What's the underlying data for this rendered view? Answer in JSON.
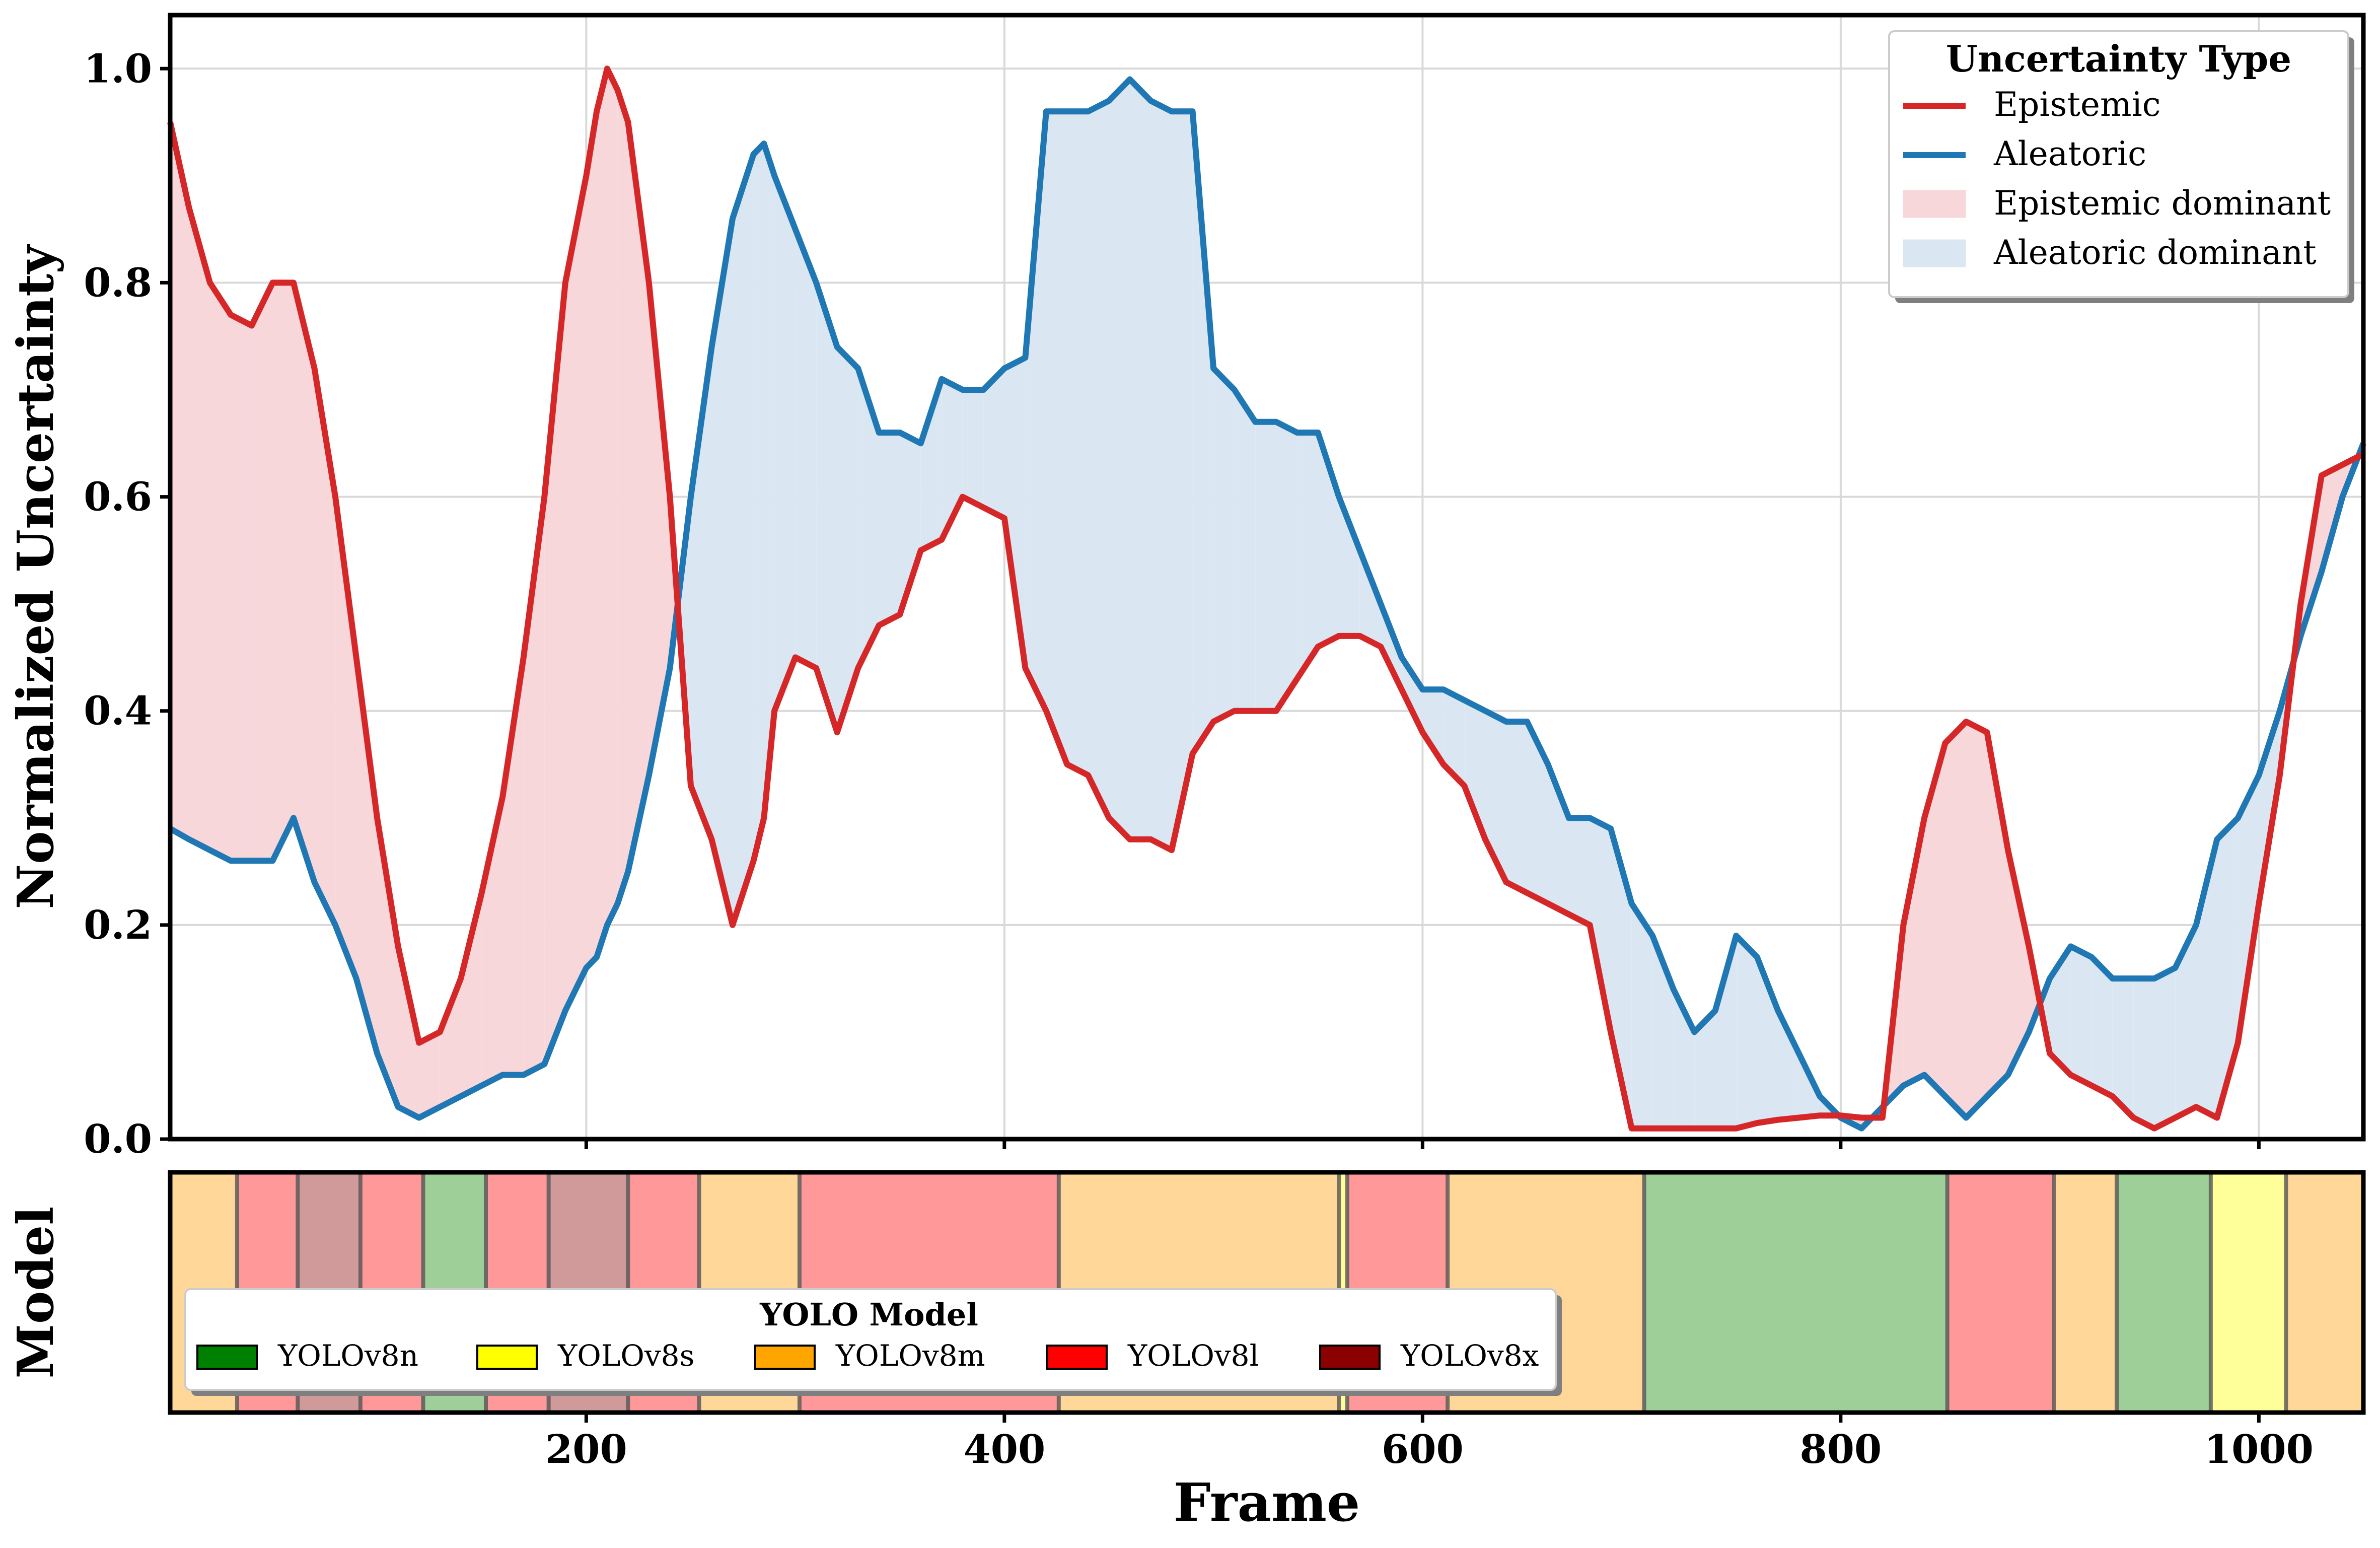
{
  "chart_data": [
    {
      "type": "line",
      "title": "",
      "xlabel": "",
      "ylabel": "Normalized Uncertainty",
      "xlim": [
        1,
        1050
      ],
      "ylim": [
        0,
        1.05
      ],
      "x_ticks": [
        200,
        400,
        600,
        800,
        1000
      ],
      "y_ticks": [
        0.0,
        0.2,
        0.4,
        0.6,
        0.8,
        1.0
      ],
      "y_tick_labels": [
        "0.0",
        "0.2",
        "0.4",
        "0.6",
        "0.8",
        "1.0"
      ],
      "grid": true,
      "legend_position": "top-right",
      "legend_title": "Uncertainty Type",
      "series": [
        {
          "name": "Epistemic",
          "color": "#d62728",
          "x": [
            1,
            10,
            20,
            30,
            40,
            50,
            60,
            70,
            80,
            90,
            100,
            110,
            120,
            130,
            140,
            150,
            160,
            170,
            180,
            190,
            200,
            205,
            210,
            215,
            220,
            230,
            240,
            250,
            260,
            270,
            280,
            285,
            290,
            300,
            310,
            320,
            330,
            340,
            350,
            360,
            370,
            380,
            390,
            400,
            410,
            420,
            430,
            440,
            450,
            460,
            470,
            480,
            490,
            500,
            510,
            520,
            530,
            540,
            550,
            560,
            570,
            580,
            590,
            600,
            610,
            620,
            630,
            640,
            650,
            660,
            670,
            680,
            690,
            700,
            710,
            720,
            730,
            740,
            750,
            760,
            770,
            780,
            790,
            800,
            810,
            820,
            830,
            840,
            850,
            860,
            870,
            880,
            890,
            900,
            910,
            920,
            930,
            940,
            950,
            960,
            970,
            980,
            990,
            1000,
            1010,
            1020,
            1030,
            1040,
            1050
          ],
          "values": [
            0.95,
            0.87,
            0.8,
            0.77,
            0.76,
            0.8,
            0.8,
            0.72,
            0.6,
            0.45,
            0.3,
            0.18,
            0.09,
            0.1,
            0.15,
            0.23,
            0.32,
            0.45,
            0.6,
            0.8,
            0.9,
            0.96,
            1.0,
            0.98,
            0.95,
            0.8,
            0.6,
            0.33,
            0.28,
            0.2,
            0.26,
            0.3,
            0.4,
            0.45,
            0.44,
            0.38,
            0.44,
            0.48,
            0.49,
            0.55,
            0.56,
            0.6,
            0.59,
            0.58,
            0.44,
            0.4,
            0.35,
            0.34,
            0.3,
            0.28,
            0.28,
            0.27,
            0.36,
            0.39,
            0.4,
            0.4,
            0.4,
            0.43,
            0.46,
            0.47,
            0.47,
            0.46,
            0.42,
            0.38,
            0.35,
            0.33,
            0.28,
            0.24,
            0.23,
            0.22,
            0.21,
            0.2,
            0.1,
            0.01,
            0.01,
            0.01,
            0.01,
            0.01,
            0.01,
            0.015,
            0.018,
            0.02,
            0.022,
            0.022,
            0.02,
            0.02,
            0.2,
            0.3,
            0.37,
            0.39,
            0.38,
            0.27,
            0.18,
            0.08,
            0.06,
            0.05,
            0.04,
            0.02,
            0.01,
            0.02,
            0.03,
            0.02,
            0.09,
            0.22,
            0.34,
            0.5,
            0.62,
            0.63,
            0.64
          ],
          "line_width": 12
        },
        {
          "name": "Aleatoric",
          "color": "#1f77b4",
          "x": [
            1,
            10,
            20,
            30,
            40,
            50,
            60,
            70,
            80,
            90,
            100,
            110,
            120,
            130,
            140,
            150,
            160,
            170,
            180,
            190,
            200,
            205,
            210,
            215,
            220,
            230,
            240,
            250,
            260,
            270,
            280,
            285,
            290,
            300,
            310,
            320,
            330,
            340,
            350,
            360,
            370,
            380,
            390,
            400,
            410,
            420,
            430,
            440,
            450,
            460,
            470,
            480,
            490,
            500,
            510,
            520,
            530,
            540,
            550,
            560,
            570,
            580,
            590,
            600,
            610,
            620,
            630,
            640,
            650,
            660,
            670,
            680,
            690,
            700,
            710,
            720,
            730,
            740,
            750,
            760,
            770,
            780,
            790,
            800,
            810,
            820,
            830,
            840,
            850,
            860,
            870,
            880,
            890,
            900,
            910,
            920,
            930,
            940,
            950,
            960,
            970,
            980,
            990,
            1000,
            1010,
            1020,
            1030,
            1040,
            1050
          ],
          "values": [
            0.29,
            0.28,
            0.27,
            0.26,
            0.26,
            0.26,
            0.3,
            0.24,
            0.2,
            0.15,
            0.08,
            0.03,
            0.02,
            0.03,
            0.04,
            0.05,
            0.06,
            0.06,
            0.07,
            0.12,
            0.16,
            0.17,
            0.2,
            0.22,
            0.25,
            0.34,
            0.44,
            0.6,
            0.74,
            0.86,
            0.92,
            0.93,
            0.9,
            0.85,
            0.8,
            0.74,
            0.72,
            0.66,
            0.66,
            0.65,
            0.71,
            0.7,
            0.7,
            0.72,
            0.73,
            0.96,
            0.96,
            0.96,
            0.97,
            0.99,
            0.97,
            0.96,
            0.96,
            0.72,
            0.7,
            0.67,
            0.67,
            0.66,
            0.66,
            0.6,
            0.55,
            0.5,
            0.45,
            0.42,
            0.42,
            0.41,
            0.4,
            0.39,
            0.39,
            0.35,
            0.3,
            0.3,
            0.29,
            0.22,
            0.19,
            0.14,
            0.1,
            0.12,
            0.19,
            0.17,
            0.12,
            0.08,
            0.04,
            0.02,
            0.01,
            0.03,
            0.05,
            0.06,
            0.04,
            0.02,
            0.04,
            0.06,
            0.1,
            0.15,
            0.18,
            0.17,
            0.15,
            0.15,
            0.15,
            0.16,
            0.2,
            0.28,
            0.3,
            0.34,
            0.4,
            0.47,
            0.53,
            0.6,
            0.65
          ],
          "line_width": 12
        }
      ],
      "fill_legend": [
        {
          "name": "Epistemic dominant",
          "color": "#f8d7da"
        },
        {
          "name": "Aleatoric dominant",
          "color": "#dae7f3"
        }
      ]
    },
    {
      "type": "heatmap",
      "title": "",
      "xlabel": "Frame",
      "ylabel": "Model",
      "xlim": [
        1,
        1050
      ],
      "x_ticks": [
        200,
        400,
        600,
        800,
        1000
      ],
      "legend_position": "bottom-left",
      "legend_title": "YOLO Model",
      "models": [
        {
          "name": "YOLOv8n",
          "color": "#008000",
          "light": "#9ecf99"
        },
        {
          "name": "YOLOv8s",
          "color": "#ffff00",
          "light": "#ffff99"
        },
        {
          "name": "YOLOv8m",
          "color": "#ffa500",
          "light": "#ffd899"
        },
        {
          "name": "YOLOv8l",
          "color": "#ff0000",
          "light": "#ff9999"
        },
        {
          "name": "YOLOv8x",
          "color": "#8b0000",
          "light": "#cf9a99"
        }
      ],
      "segments": [
        {
          "start": 1,
          "end": 33,
          "model": "YOLOv8m"
        },
        {
          "start": 33,
          "end": 62,
          "model": "YOLOv8l"
        },
        {
          "start": 62,
          "end": 92,
          "model": "YOLOv8x"
        },
        {
          "start": 92,
          "end": 122,
          "model": "YOLOv8l"
        },
        {
          "start": 122,
          "end": 152,
          "model": "YOLOv8n"
        },
        {
          "start": 152,
          "end": 182,
          "model": "YOLOv8l"
        },
        {
          "start": 182,
          "end": 220,
          "model": "YOLOv8x"
        },
        {
          "start": 220,
          "end": 254,
          "model": "YOLOv8l"
        },
        {
          "start": 254,
          "end": 302,
          "model": "YOLOv8m"
        },
        {
          "start": 302,
          "end": 426,
          "model": "YOLOv8l"
        },
        {
          "start": 426,
          "end": 560,
          "model": "YOLOv8m"
        },
        {
          "start": 560,
          "end": 564,
          "model": "YOLOv8s"
        },
        {
          "start": 564,
          "end": 612,
          "model": "YOLOv8l"
        },
        {
          "start": 612,
          "end": 706,
          "model": "YOLOv8m"
        },
        {
          "start": 706,
          "end": 851,
          "model": "YOLOv8n"
        },
        {
          "start": 851,
          "end": 902,
          "model": "YOLOv8l"
        },
        {
          "start": 902,
          "end": 932,
          "model": "YOLOv8m"
        },
        {
          "start": 932,
          "end": 977,
          "model": "YOLOv8n"
        },
        {
          "start": 977,
          "end": 1013,
          "model": "YOLOv8s"
        },
        {
          "start": 1013,
          "end": 1050,
          "model": "YOLOv8m"
        }
      ]
    }
  ]
}
